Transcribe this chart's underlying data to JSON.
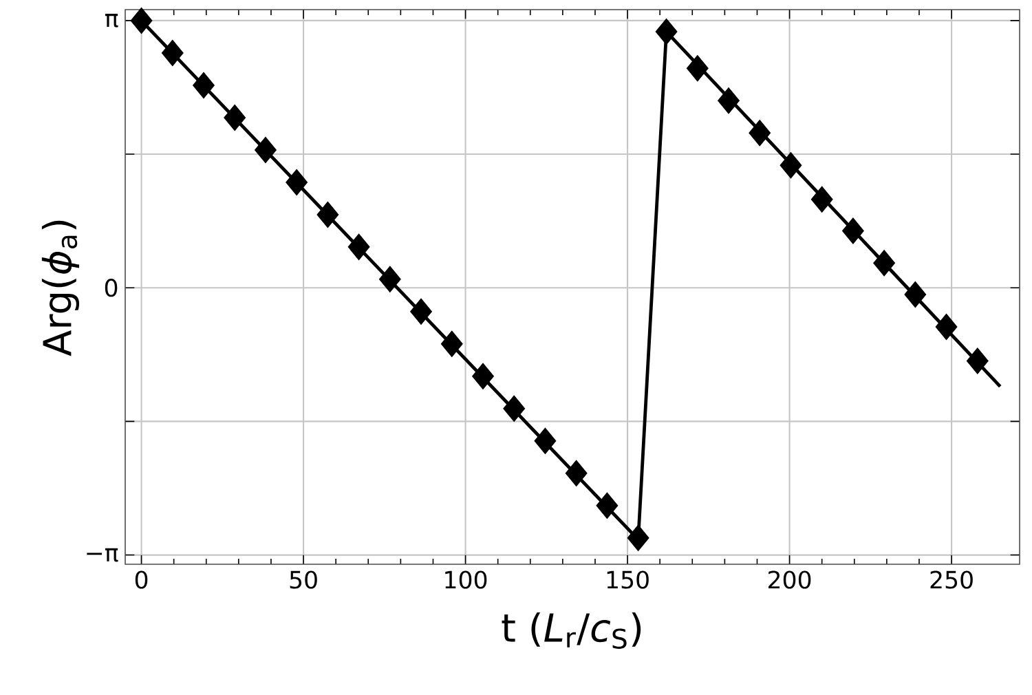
{
  "chart_data": {
    "type": "line",
    "xlabel": "t (*L*$_{r}$/*c*$_{S}$)",
    "ylabel": "Arg(*ϕ*$_{a}$)",
    "xlim": [
      -5,
      271
    ],
    "ylim": [
      -3.25,
      3.27
    ],
    "xticks": [
      0,
      50,
      100,
      150,
      200,
      250
    ],
    "yticks": [
      {
        "value": -3.14159,
        "label": "−π"
      },
      {
        "value": -1.5708,
        "label": null
      },
      0,
      {
        "value": 1.5708,
        "label": null
      },
      {
        "value": 3.14159,
        "label": "π"
      }
    ],
    "grid": true,
    "series": [
      {
        "color": "#000000",
        "marker": "none",
        "line_style": "solid",
        "x": [
          0,
          153.3,
          162,
          265
        ],
        "values": [
          3.14,
          -2.96,
          3.01,
          -1.16
        ]
      },
      {
        "type": "scatter",
        "color": "#000000",
        "marker": "diamond",
        "x": [
          0,
          9.6,
          19.2,
          28.8,
          38.3,
          47.9,
          57.5,
          67.1,
          76.7,
          86.3,
          95.8,
          105.4,
          115,
          124.6,
          134.2,
          143.7,
          153.3,
          162,
          171.6,
          181.2,
          190.8,
          200.4,
          210,
          219.6,
          229.2,
          238.8,
          248.4,
          258
        ],
        "values": [
          3.14,
          2.76,
          2.38,
          2.0,
          1.62,
          1.24,
          0.86,
          0.48,
          0.1,
          -0.28,
          -0.66,
          -1.04,
          -1.42,
          -1.8,
          -2.18,
          -2.56,
          -2.94,
          3.01,
          2.58,
          2.2,
          1.82,
          1.44,
          1.04,
          0.67,
          0.29,
          -0.08,
          -0.46,
          -0.86
        ]
      }
    ]
  }
}
